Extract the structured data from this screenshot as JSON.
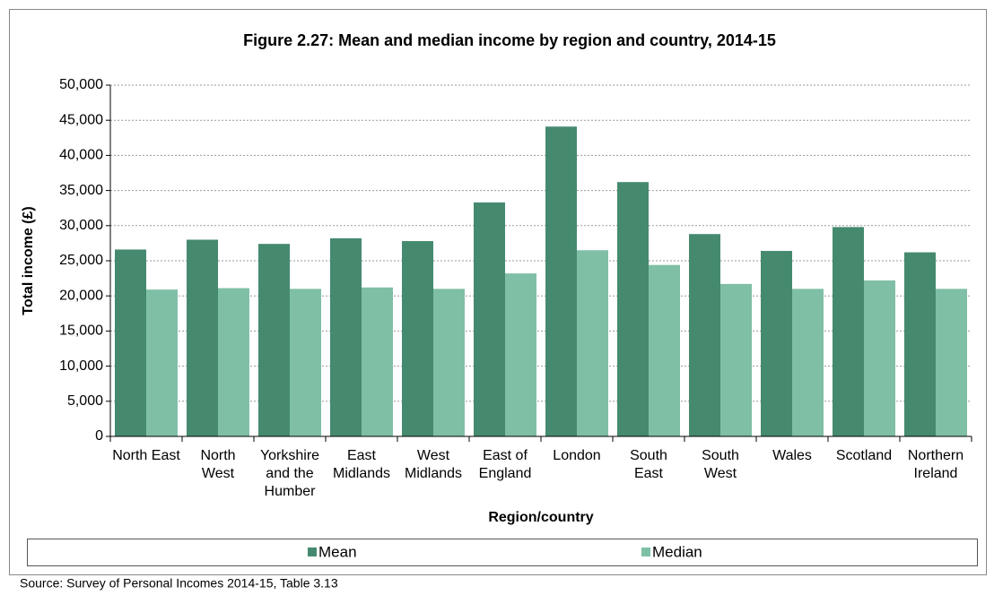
{
  "chart_data": {
    "type": "bar",
    "title": "Figure 2.27: Mean and median income by region and country, 2014-15",
    "y_label": "Total income (£)",
    "x_label": "Region/country",
    "source": "Source: Survey of Personal Incomes 2014-15, Table 3.13",
    "categories": [
      "North East",
      "North West",
      "Yorkshire and the Humber",
      "East Midlands",
      "West Midlands",
      "East of England",
      "London",
      "South East",
      "South West",
      "Wales",
      "Scotland",
      "Northern Ireland"
    ],
    "series": [
      {
        "name": "Mean",
        "color": "#458a6f",
        "values": [
          26600,
          28000,
          27400,
          28200,
          27800,
          33300,
          44100,
          36200,
          28800,
          26400,
          29800,
          26200
        ]
      },
      {
        "name": "Median",
        "color": "#7fbfa6",
        "values": [
          20900,
          21100,
          21000,
          21200,
          21000,
          23200,
          26500,
          24400,
          21700,
          21000,
          22200,
          21000
        ]
      }
    ],
    "ylim": [
      0,
      50000
    ],
    "yticks": [
      0,
      {
        "value": 5000,
        "label": "5,000"
      },
      {
        "value": 10000,
        "label": "10,000"
      },
      {
        "value": 15000,
        "label": "15,000"
      },
      {
        "value": 20000,
        "label": "20,000"
      },
      {
        "value": 25000,
        "label": "25,000"
      },
      {
        "value": 30000,
        "label": "30,000"
      },
      {
        "value": 35000,
        "label": "35,000"
      },
      {
        "value": 40000,
        "label": "40,000"
      },
      {
        "value": 45000,
        "label": "45,000"
      },
      {
        "value": 50000,
        "label": "50,000"
      }
    ],
    "grid": true,
    "legend": "bottom"
  }
}
